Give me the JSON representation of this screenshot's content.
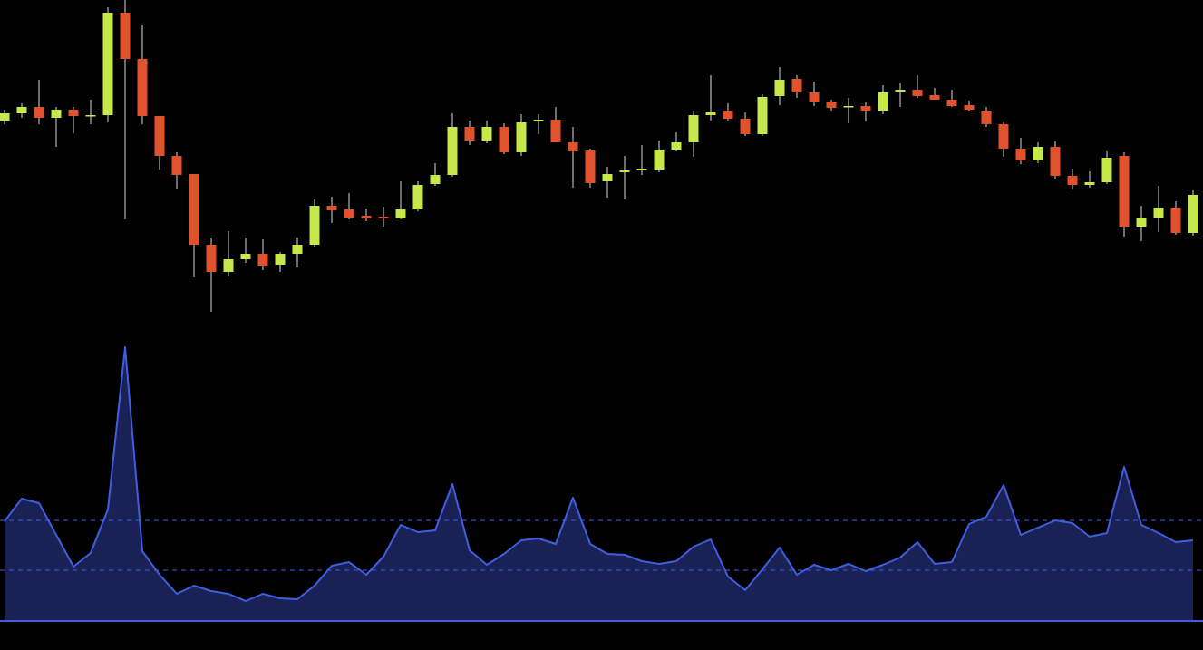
{
  "chart_data": [
    {
      "type": "candlestick",
      "open": [
        227,
        235,
        242,
        230,
        239,
        232,
        233,
        346,
        295,
        232,
        188,
        168,
        90,
        60,
        74,
        80,
        68,
        80,
        90,
        133,
        129,
        122,
        121,
        119,
        129,
        157,
        167,
        220,
        205,
        220,
        192,
        226,
        228,
        203,
        194,
        160,
        170,
        172,
        173,
        195,
        203,
        233,
        238,
        229,
        212,
        254,
        273,
        258,
        248,
        242,
        243,
        238,
        259,
        261,
        255,
        250,
        244,
        238,
        223,
        196,
        183,
        198,
        166,
        156,
        159,
        188,
        110,
        120,
        131,
        103
      ],
      "high": [
        239,
        246,
        272,
        242,
        242,
        250,
        352,
        360,
        332,
        232,
        192,
        168,
        98,
        105,
        98,
        96,
        82,
        98,
        140,
        143,
        147,
        130,
        132,
        160,
        160,
        180,
        235,
        227,
        227,
        224,
        234,
        234,
        242,
        220,
        196,
        176,
        188,
        200,
        205,
        214,
        238,
        277,
        246,
        236,
        256,
        286,
        277,
        270,
        250,
        252,
        247,
        266,
        268,
        277,
        263,
        261,
        249,
        242,
        225,
        208,
        203,
        204,
        174,
        171,
        193,
        192,
        133,
        155,
        138,
        150
      ],
      "low": [
        223,
        230,
        223,
        198,
        213,
        223,
        225,
        118,
        223,
        173,
        152,
        54,
        16,
        55,
        70,
        62,
        60,
        65,
        88,
        114,
        118,
        116,
        110,
        118,
        127,
        155,
        165,
        200,
        202,
        190,
        188,
        212,
        203,
        153,
        153,
        142,
        140,
        167,
        170,
        193,
        187,
        227,
        227,
        210,
        210,
        244,
        252,
        243,
        238,
        224,
        226,
        234,
        242,
        252,
        250,
        242,
        238,
        220,
        187,
        179,
        180,
        163,
        151,
        153,
        157,
        99,
        94,
        104,
        101,
        100
      ],
      "close": [
        235,
        242,
        230,
        239,
        232,
        233,
        346,
        295,
        232,
        188,
        167,
        90,
        60,
        74,
        80,
        67,
        80,
        90,
        133,
        128,
        120,
        119,
        119,
        129,
        156,
        167,
        220,
        205,
        220,
        192,
        225,
        228,
        203,
        193,
        158,
        168,
        172,
        174,
        195,
        203,
        233,
        237,
        229,
        212,
        253,
        272,
        258,
        248,
        241,
        243,
        238,
        258,
        261,
        254,
        250,
        243,
        239,
        223,
        196,
        183,
        198,
        166,
        156,
        159,
        186,
        110,
        120,
        131,
        103,
        145
      ],
      "ylim": [
        0,
        360
      ],
      "up_color": "#c6e84a",
      "down_color": "#e0522e",
      "wick_color": "#d8d8d8"
    },
    {
      "type": "area",
      "values": [
        110,
        135,
        130,
        95,
        60,
        75,
        123,
        302,
        77,
        51,
        30,
        39,
        33,
        30,
        22,
        30,
        25,
        24,
        39,
        61,
        65,
        51,
        71,
        106,
        98,
        100,
        151,
        78,
        62,
        74,
        89,
        91,
        85,
        136,
        85,
        74,
        73,
        66,
        63,
        66,
        82,
        90,
        49,
        34,
        57,
        81,
        51,
        62,
        56,
        63,
        55,
        62,
        70,
        87,
        63,
        65,
        107,
        115,
        150,
        95,
        103,
        111,
        108,
        93,
        97,
        170,
        106,
        97,
        87,
        89
      ],
      "ylim": [
        0,
        305
      ],
      "levels": [
        111,
        56
      ],
      "color": "#3f5fe0",
      "fill_color": "#1a2155"
    }
  ]
}
